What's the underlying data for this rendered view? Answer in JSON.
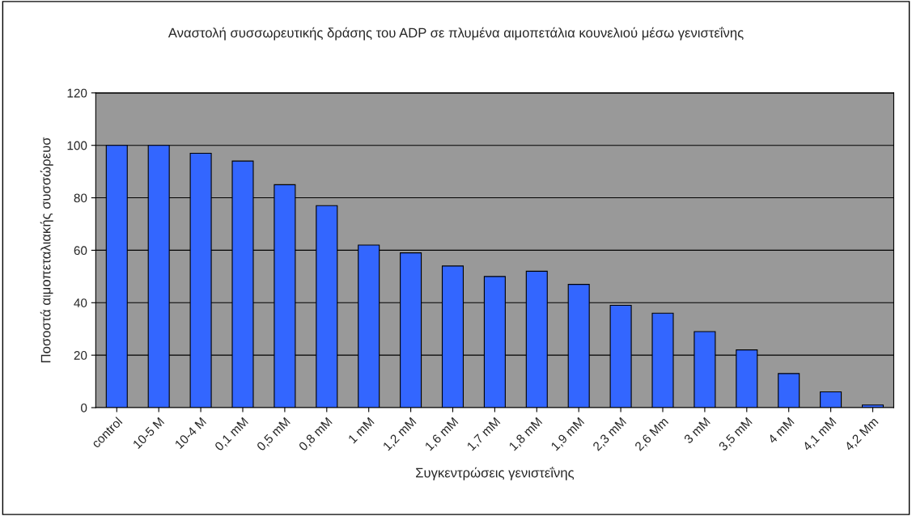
{
  "chart_data": {
    "type": "bar",
    "title": "Αναστολή συσσωρευτικής δράσης του ADP σε πλυμένα αιμοπετάλια κουνελιού μέσω γενιστεΐνης",
    "xlabel": "Συγκεντρώσεις γενιστεΐνης",
    "ylabel": "Ποσοστά αιμοπεταλιακής συσσώρευσ",
    "categories": [
      "control",
      "10-5 M",
      "10-4 M",
      "0,1 mM",
      "0,5 mM",
      "0,8 mM",
      "1 mM",
      "1,2 mM",
      "1,6 mM",
      "1,7 mM",
      "1,8 mM",
      "1,9 mM",
      "2,3 mM",
      "2,6 Mm",
      "3 mM",
      "3,5 mM",
      "4 mM",
      "4,1 mM",
      "4,2 Mm"
    ],
    "values": [
      100,
      100,
      97,
      94,
      85,
      77,
      62,
      59,
      54,
      50,
      52,
      47,
      39,
      36,
      29,
      22,
      13,
      6,
      1
    ],
    "color": "#3366ff",
    "ylim": [
      0,
      120
    ],
    "yticks": [
      0,
      20,
      40,
      60,
      80,
      100,
      120
    ],
    "grid": "y"
  }
}
